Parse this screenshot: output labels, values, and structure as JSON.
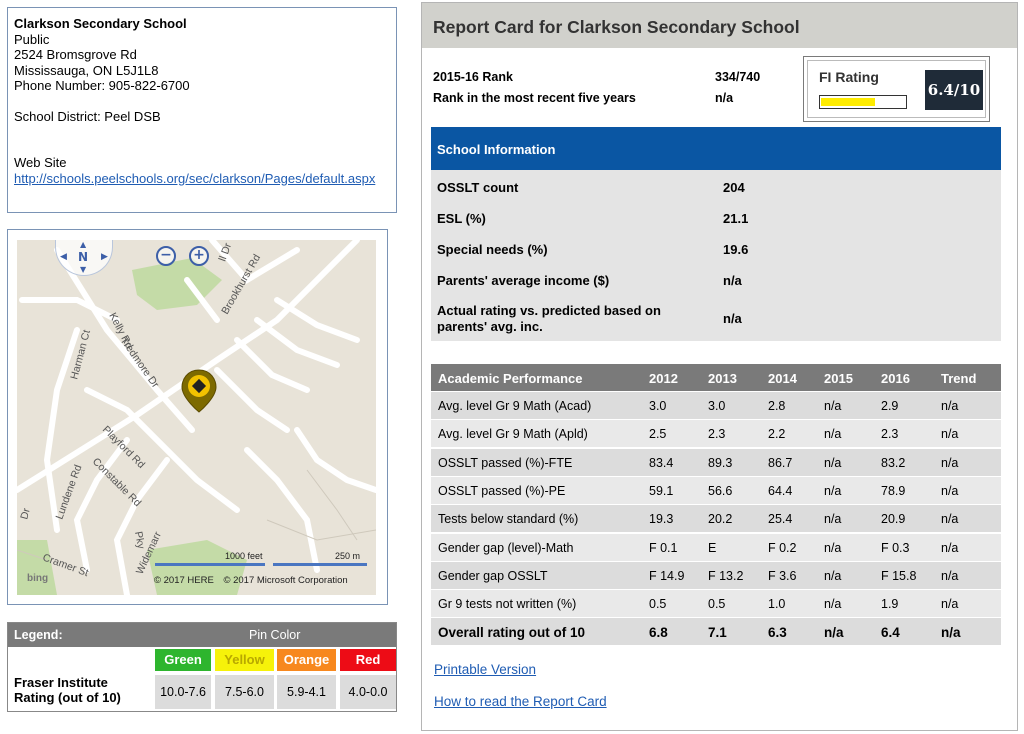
{
  "school": {
    "name": "Clarkson Secondary School",
    "type": "Public",
    "address1": "2524 Bromsgrove Rd",
    "address2": "Mississauga, ON L5J1L8",
    "phone": "Phone Number: 905-822-6700",
    "district": "School District: Peel DSB",
    "website_label": "Web Site",
    "website_url": "http://schools.peelschools.org/sec/clarkson/Pages/default.aspx"
  },
  "map": {
    "compass_label": "N",
    "zoom_out": "−",
    "zoom_in": "+",
    "scale_feet": "1000 feet",
    "scale_m": "250 m",
    "copyright_here": "© 2017 HERE",
    "copyright_ms": "© 2017 Microsoft Corporation",
    "logo": "bing",
    "roads": [
      "Kelly Rd",
      "Brookhurst Rd",
      "Tredmore Dr",
      "Harman Ct",
      "Playford Rd",
      "Constable Rd",
      "Lundene Rd",
      "Widemarr",
      "Cramer St",
      "Dr",
      "ll Dr",
      "Pky"
    ],
    "pin_color": "#f2c200"
  },
  "legend": {
    "title": "Legend:",
    "pin_color_label": "Pin Color",
    "row_label": "Fraser Institute Rating (out of 10)",
    "colors": [
      {
        "name": "Green",
        "range": "10.0-7.6",
        "hex": "#2eb52e"
      },
      {
        "name": "Yellow",
        "range": "7.5-6.0",
        "hex": "#f6f20a"
      },
      {
        "name": "Orange",
        "range": "5.9-4.1",
        "hex": "#f7881e"
      },
      {
        "name": "Red",
        "range": "4.0-0.0",
        "hex": "#ed0c16"
      }
    ]
  },
  "report": {
    "title": "Report Card for Clarkson Secondary School",
    "rank_label": "2015-16 Rank",
    "rank_value": "334/740",
    "rank5_label": "Rank in the most recent five years",
    "rank5_value": "n/a",
    "fi_label": "FI Rating",
    "fi_score": "6.4/10",
    "fi_fraction": 0.64,
    "school_info": {
      "header": "School Information",
      "rows": [
        {
          "k": "OSSLT count",
          "v": "204"
        },
        {
          "k": "ESL (%)",
          "v": "21.1"
        },
        {
          "k": "Special needs (%)",
          "v": "19.6"
        },
        {
          "k": "Parents' average income ($)",
          "v": "n/a"
        },
        {
          "k": "Actual rating vs. predicted based on parents' avg. inc.",
          "v": "n/a"
        }
      ]
    },
    "academic": {
      "headers": [
        "Academic Performance",
        "2012",
        "2013",
        "2014",
        "2015",
        "2016",
        "Trend"
      ],
      "rows": [
        [
          "Avg. level Gr 9 Math (Acad)",
          "3.0",
          "3.0",
          "2.8",
          "n/a",
          "2.9",
          "n/a"
        ],
        [
          "Avg. level Gr 9 Math (Apld)",
          "2.5",
          "2.3",
          "2.2",
          "n/a",
          "2.3",
          "n/a"
        ],
        [
          "OSSLT passed (%)-FTE",
          "83.4",
          "89.3",
          "86.7",
          "n/a",
          "83.2",
          "n/a"
        ],
        [
          "OSSLT passed (%)-PE",
          "59.1",
          "56.6",
          "64.4",
          "n/a",
          "78.9",
          "n/a"
        ],
        [
          "Tests below standard (%)",
          "19.3",
          "20.2",
          "25.4",
          "n/a",
          "20.9",
          "n/a"
        ],
        [
          "Gender gap (level)-Math",
          "F 0.1",
          "E",
          "F 0.2",
          "n/a",
          "F 0.3",
          "n/a"
        ],
        [
          "Gender gap OSSLT",
          "F 14.9",
          "F 13.2",
          "F 3.6",
          "n/a",
          "F 15.8",
          "n/a"
        ],
        [
          "Gr 9 tests not written (%)",
          "0.5",
          "0.5",
          "1.0",
          "n/a",
          "1.9",
          "n/a"
        ],
        [
          "Overall rating out of 10",
          "6.8",
          "7.1",
          "6.3",
          "n/a",
          "6.4",
          "n/a"
        ]
      ]
    },
    "printable": "Printable Version",
    "how_to_read": "How to read the Report Card"
  }
}
